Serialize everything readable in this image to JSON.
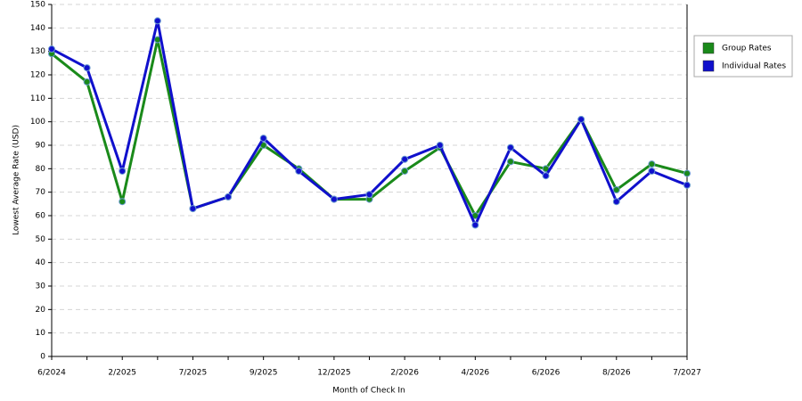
{
  "chart_data": {
    "type": "line",
    "xlabel": "Month of Check In",
    "ylabel": "Lowest Average Rate (USD)",
    "categories": [
      "6/2024",
      null,
      "2/2025",
      null,
      "7/2025",
      null,
      "9/2025",
      null,
      "12/2025",
      null,
      "2/2026",
      null,
      "4/2026",
      null,
      "6/2026",
      null,
      "8/2026",
      null,
      "7/2027"
    ],
    "series": [
      {
        "name": "Group Rates",
        "color": "#1a8a1a",
        "values": [
          129,
          117,
          66,
          135,
          63,
          68,
          90,
          80,
          67,
          67,
          79,
          89,
          60,
          83,
          80,
          101,
          71,
          82,
          78
        ]
      },
      {
        "name": "Individual Rates",
        "color": "#1010cc",
        "values": [
          131,
          123,
          79,
          143,
          63,
          68,
          93,
          79,
          67,
          69,
          84,
          90,
          56,
          89,
          77,
          101,
          66,
          79,
          73
        ]
      }
    ],
    "ylim": [
      0,
      150
    ],
    "yticks": [
      0,
      10,
      20,
      30,
      40,
      50,
      60,
      70,
      80,
      90,
      100,
      110,
      120,
      130,
      140,
      150
    ],
    "grid": true,
    "legend": "right"
  }
}
